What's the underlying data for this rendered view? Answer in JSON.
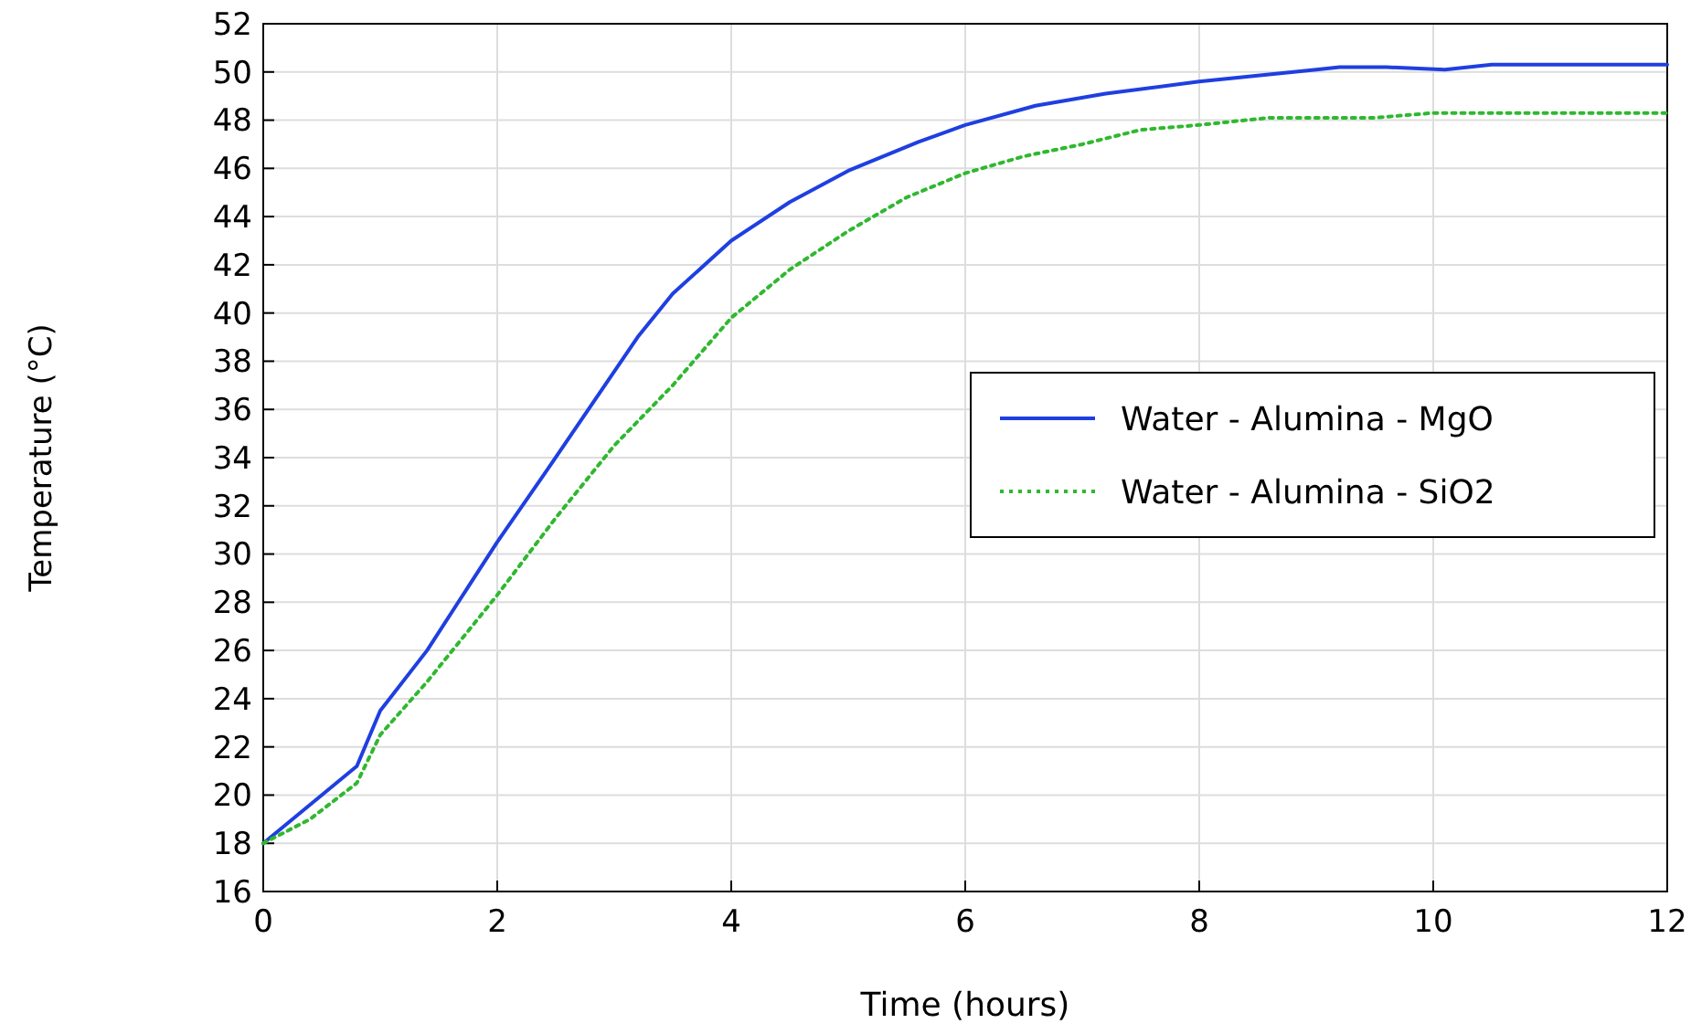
{
  "chart_data": {
    "type": "line",
    "xlabel": "Time (hours)",
    "ylabel": "Temperature (°C)",
    "xlim": [
      0,
      12
    ],
    "xticks": [
      0,
      2,
      4,
      6,
      8,
      10,
      12
    ],
    "ylim": [
      16,
      52
    ],
    "yticks": [
      16,
      18,
      20,
      22,
      24,
      26,
      28,
      30,
      32,
      34,
      36,
      38,
      40,
      42,
      44,
      46,
      48,
      50,
      52
    ],
    "grid": true,
    "legend": "right",
    "marker": "none",
    "series": [
      {
        "name": "Water - Alumina - MgO",
        "color": "#1f3fe0",
        "line_style": "solid",
        "x": [
          0,
          0.8,
          1,
          1.4,
          2,
          2.4,
          3.2,
          3.5,
          4,
          4.5,
          5,
          5.6,
          6,
          6.6,
          7.2,
          8,
          9,
          9.2,
          9.6,
          10.1,
          10.5,
          12
        ],
        "values": [
          18,
          21.2,
          23.5,
          26,
          30.5,
          33.3,
          39,
          40.8,
          43,
          44.6,
          45.9,
          47.1,
          47.8,
          48.6,
          49.1,
          49.6,
          50.1,
          50.2,
          50.2,
          50.1,
          50.3,
          50.3
        ]
      },
      {
        "name": "Water - Alumina - SiO2",
        "color": "#2fb82f",
        "line_style": "dotted",
        "x": [
          0,
          0.4,
          0.8,
          1,
          1.4,
          2,
          2.5,
          3,
          3.5,
          4,
          4.5,
          5,
          5.5,
          6,
          6.5,
          7,
          7.5,
          8,
          8.6,
          9.5,
          10,
          12
        ],
        "values": [
          18,
          19,
          20.5,
          22.5,
          24.7,
          28.3,
          31.5,
          34.5,
          37,
          39.8,
          41.8,
          43.4,
          44.8,
          45.8,
          46.5,
          47,
          47.6,
          47.8,
          48.1,
          48.1,
          48.3,
          48.3
        ]
      }
    ]
  }
}
